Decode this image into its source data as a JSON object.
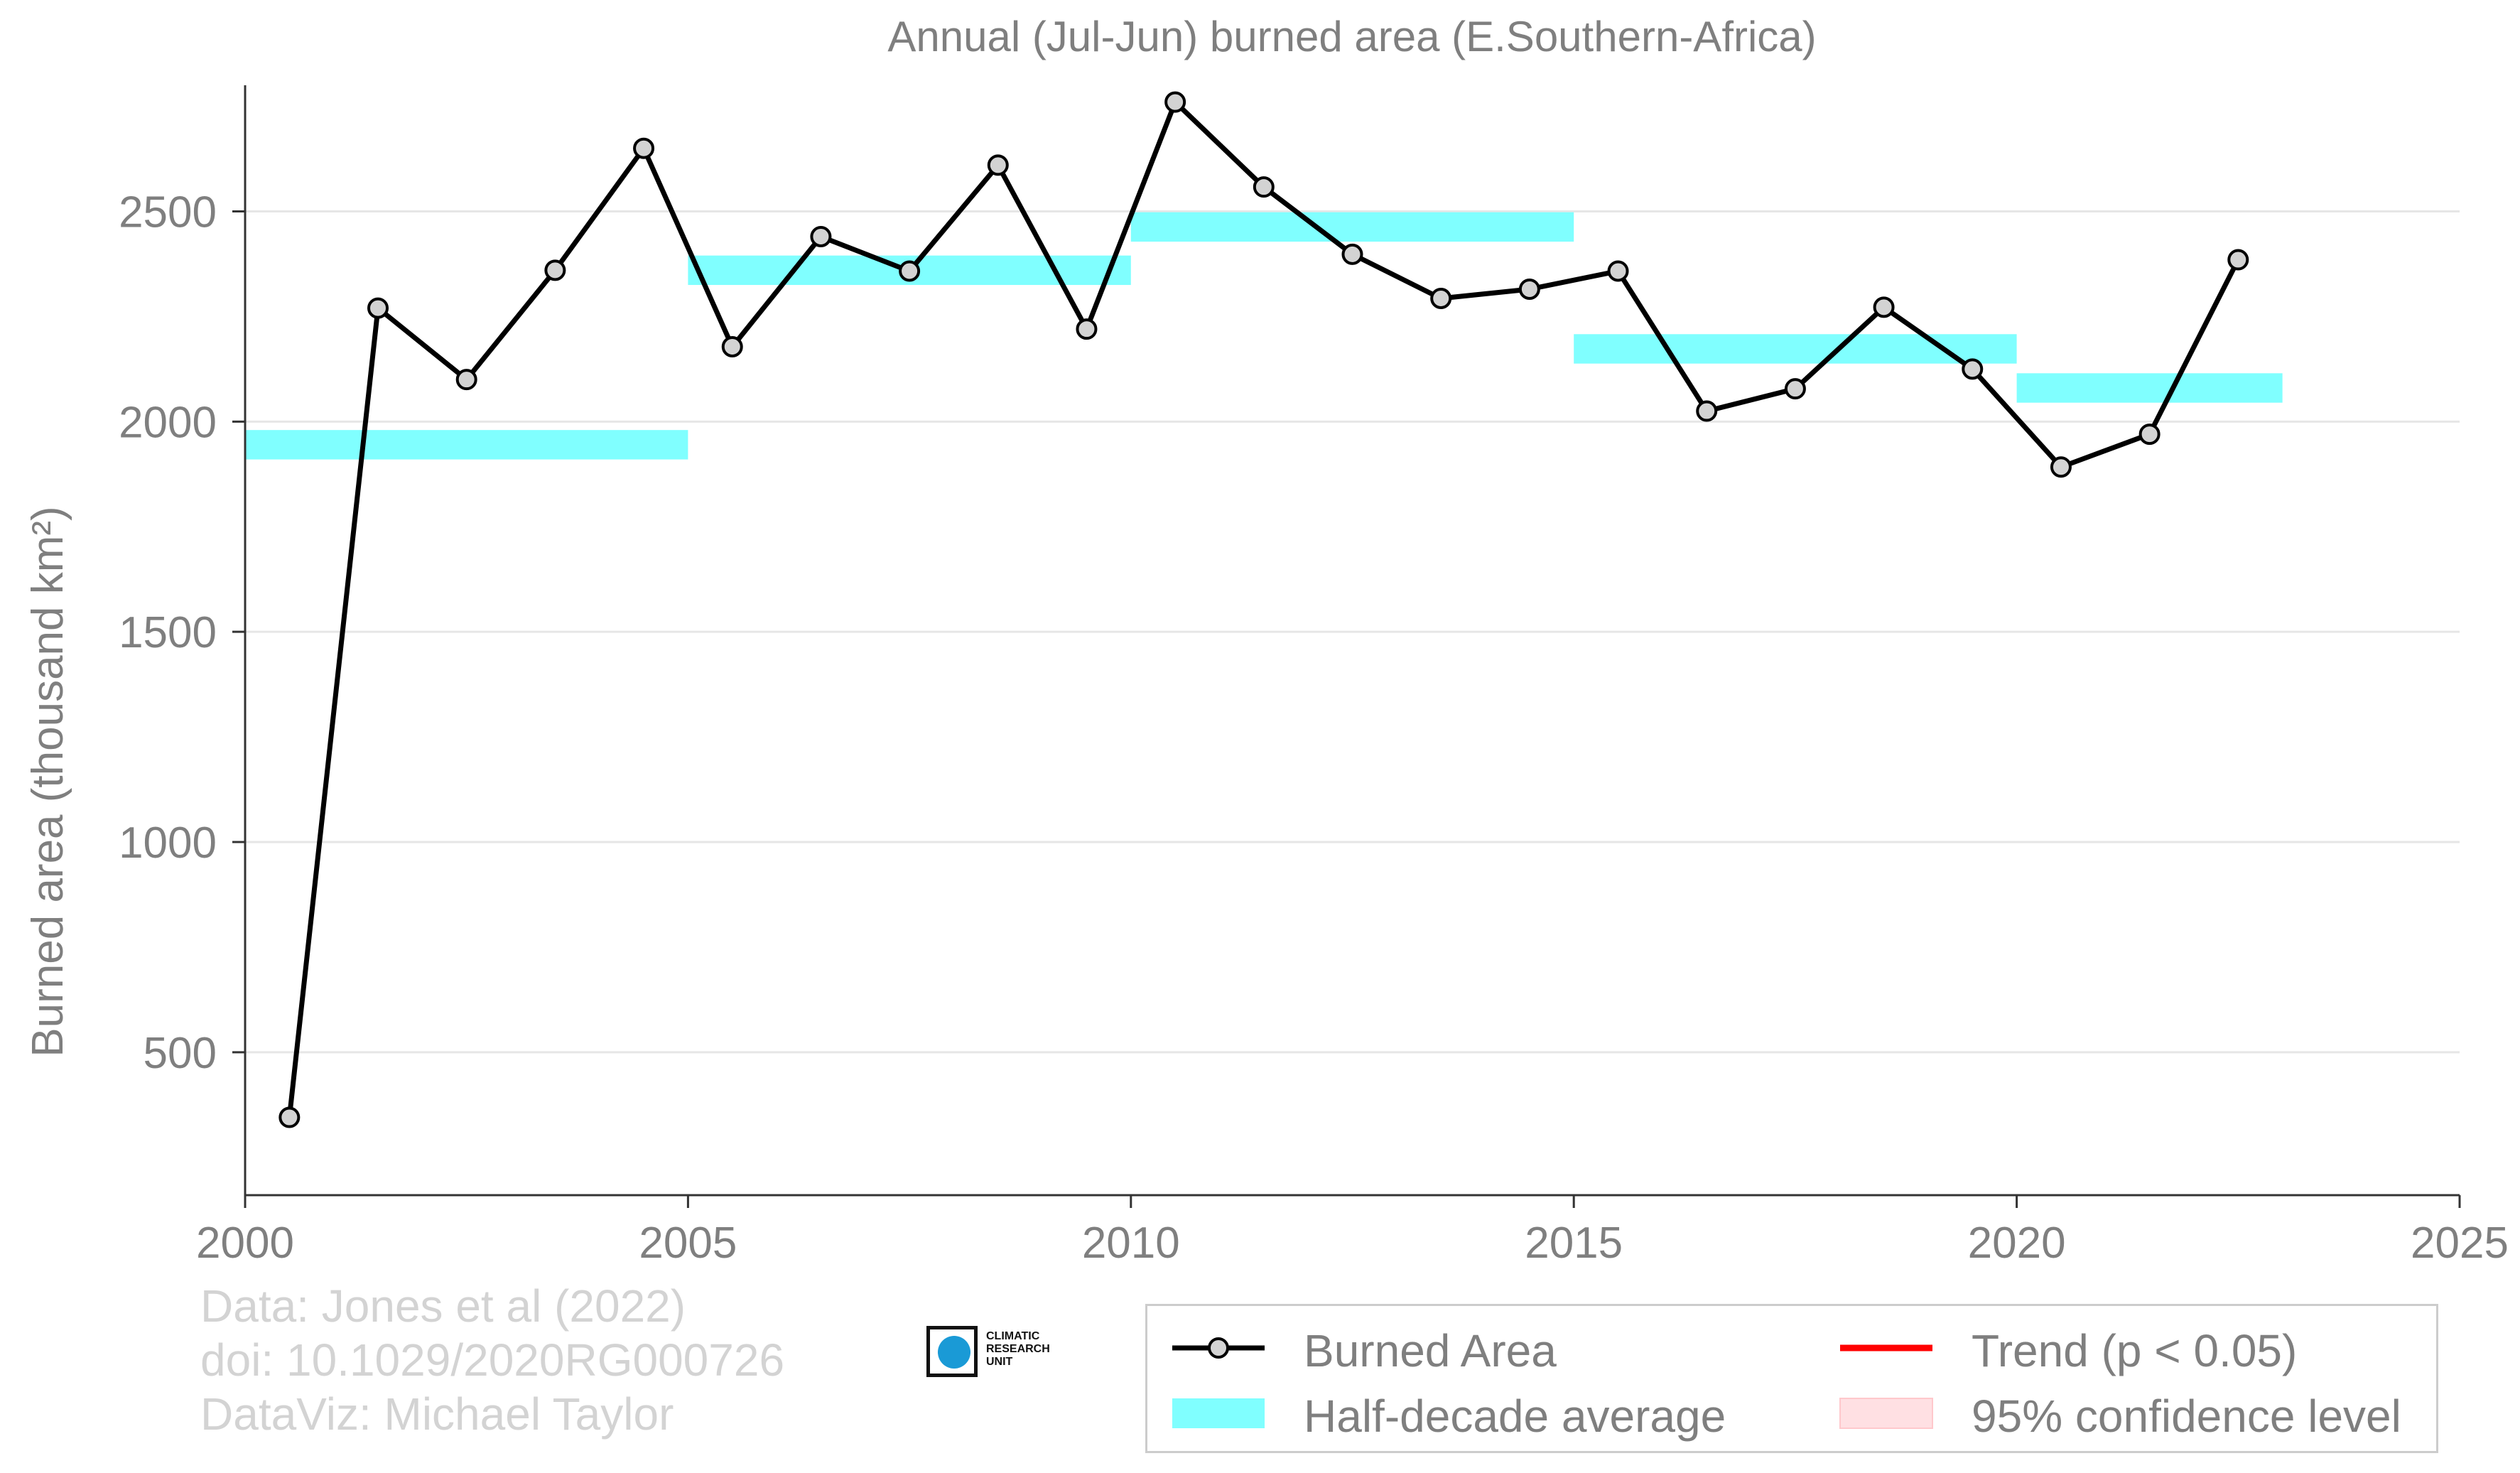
{
  "chart_data": {
    "type": "line",
    "title": "Annual (Jul-Jun) burned area (E.Southern-Africa)",
    "xlabel": "",
    "ylabel": "Burned area (thousand km²)",
    "xlim": [
      2000,
      2025
    ],
    "ylim": [
      160,
      2800
    ],
    "xticks": [
      2000,
      2005,
      2010,
      2015,
      2020,
      2025
    ],
    "yticks": [
      500,
      1000,
      1500,
      2000,
      2500
    ],
    "grid": "horizontal",
    "legend_position": "bottom-right",
    "series": [
      {
        "name": "Burned Area",
        "style": "line-with-markers",
        "color": "#000000",
        "marker_color": "#d3d3d3",
        "x": [
          2000.5,
          2001.5,
          2002.5,
          2003.5,
          2004.5,
          2005.5,
          2006.5,
          2007.5,
          2008.5,
          2009.5,
          2010.5,
          2011.5,
          2012.5,
          2013.5,
          2014.5,
          2015.5,
          2016.5,
          2017.5,
          2018.5,
          2019.5,
          2020.5,
          2021.5,
          2022.5
        ],
        "y": [
          345,
          2270,
          2100,
          2360,
          2650,
          2178,
          2440,
          2358,
          2610,
          2220,
          2760,
          2558,
          2398,
          2293,
          2315,
          2358,
          2025,
          2078,
          2272,
          2125,
          1892,
          1970,
          2385
        ]
      },
      {
        "name": "Half-decade average",
        "style": "band",
        "color": "#80ffff",
        "segments": [
          {
            "x0": 2000,
            "x1": 2005,
            "y0": 1910,
            "y1": 1980
          },
          {
            "x0": 2005,
            "x1": 2010,
            "y0": 2325,
            "y1": 2395
          },
          {
            "x0": 2010,
            "x1": 2015,
            "y0": 2428,
            "y1": 2498
          },
          {
            "x0": 2015,
            "x1": 2020,
            "y0": 2138,
            "y1": 2208
          },
          {
            "x0": 2020,
            "x1": 2023,
            "y0": 2045,
            "y1": 2115
          }
        ]
      }
    ],
    "legend": [
      {
        "label": "Burned Area",
        "kind": "line-marker",
        "color": "#000000"
      },
      {
        "label": "Half-decade average",
        "kind": "band",
        "color": "#80ffff"
      },
      {
        "label": "Trend (p < 0.05)",
        "kind": "line",
        "color": "#ff0000"
      },
      {
        "label": "95% confidence level",
        "kind": "band",
        "color": "#ffe0e3"
      }
    ]
  },
  "credits": {
    "line1": "Data: Jones et al (2022)",
    "line2": "doi: 10.1029/2020RG000726",
    "line3": "DataViz: Michael Taylor"
  },
  "logo": {
    "line1": "CLIMATIC",
    "line2": "RESEARCH",
    "line3": "UNIT"
  }
}
